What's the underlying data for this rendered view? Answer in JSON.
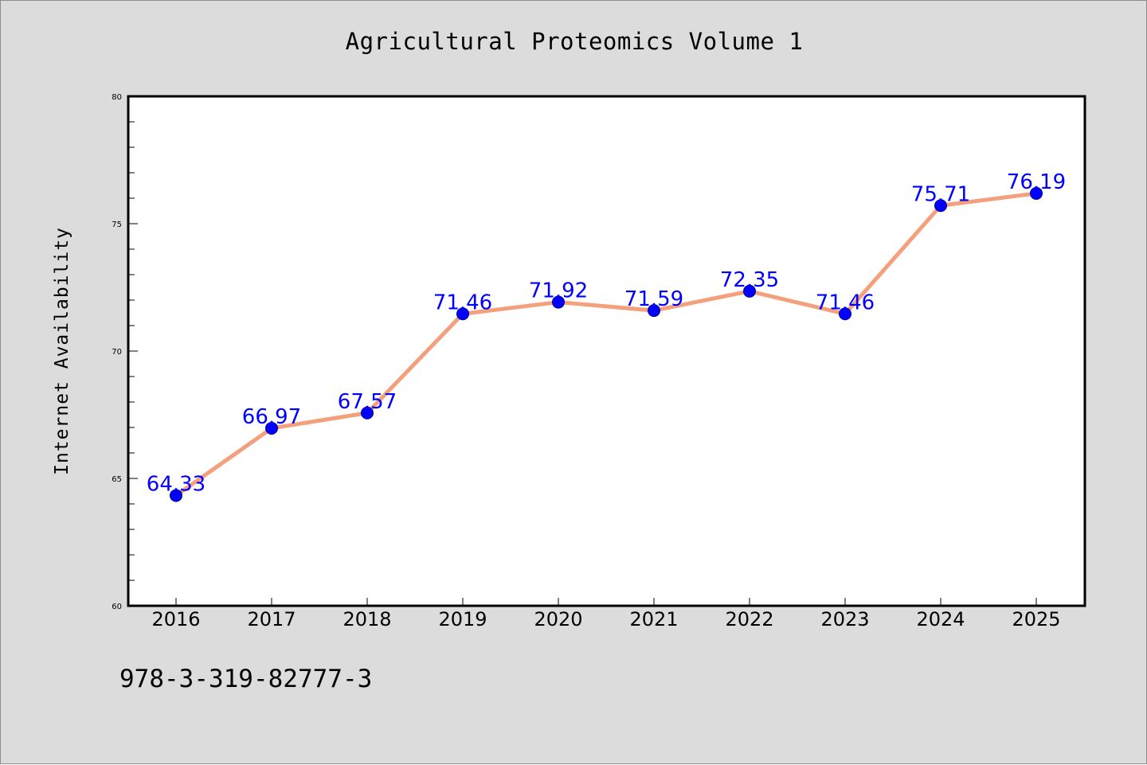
{
  "chart_data": {
    "type": "line",
    "title": "Agricultural Proteomics Volume 1",
    "xlabel": "",
    "ylabel": "Internet Availability",
    "categories": [
      "2016",
      "2017",
      "2018",
      "2019",
      "2020",
      "2021",
      "2022",
      "2023",
      "2024",
      "2025"
    ],
    "values": [
      64.33,
      66.97,
      67.57,
      71.46,
      71.92,
      71.59,
      72.35,
      71.46,
      75.71,
      76.19
    ],
    "data_labels": [
      "64.33",
      "66.97",
      "67.57",
      "71.46",
      "71.92",
      "71.59",
      "72.35",
      "71.46",
      "75.71",
      "76.19"
    ],
    "ylim": [
      60,
      80
    ],
    "yticks": [
      60,
      65,
      70,
      75,
      80
    ],
    "ytick_labels": [
      "60",
      "65",
      "70",
      "75",
      "80"
    ],
    "minor_ytick_step": 1,
    "grid": false,
    "legend": "none"
  },
  "footer": {
    "isbn": "978-3-319-82777-3"
  },
  "colors": {
    "background": "#dcdcdc",
    "plot_background": "#ffffff",
    "line": "#f4a07d",
    "marker": "#0000ff",
    "data_label": "#0000ff"
  }
}
